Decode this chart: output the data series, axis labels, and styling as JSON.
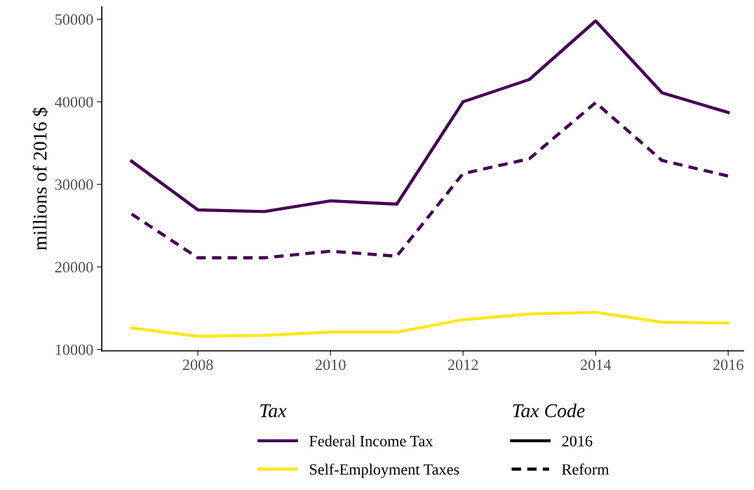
{
  "chart_data": {
    "type": "line",
    "ylabel": "millions of 2016 $",
    "legend_title": "Tax",
    "x": [
      2007,
      2008,
      2009,
      2010,
      2011,
      2012,
      2013,
      2014,
      2015,
      2016
    ],
    "series": [
      {
        "name": "Federal Income Tax",
        "color": "#440154",
        "line_style": "solid",
        "values": [
          32800,
          26900,
          26700,
          28000,
          27600,
          40000,
          42700,
          49800,
          41100,
          38700
        ]
      },
      {
        "color": "#440154",
        "line_style": "dashed",
        "values": [
          26400,
          21100,
          21100,
          21900,
          21300,
          31300,
          33100,
          39900,
          32900,
          31000
        ]
      },
      {
        "name": "Self-Employment Taxes",
        "color": "#fde725",
        "line_style": "solid",
        "values": [
          12600,
          11600,
          11700,
          12100,
          12100,
          13600,
          14300,
          14500,
          13300,
          13200
        ]
      }
    ],
    "annotations": [
      "Tax Code",
      "2016",
      "Reform"
    ],
    "xlim": [
      2006.55,
      2016.23
    ],
    "xticks": [
      2008,
      2010,
      2012,
      2014,
      2016
    ],
    "ylim": [
      9830,
      51500
    ],
    "yticks": [
      10000,
      20000,
      30000,
      40000,
      50000
    ],
    "grid": false,
    "legend": "bottom",
    "marker": "none"
  }
}
